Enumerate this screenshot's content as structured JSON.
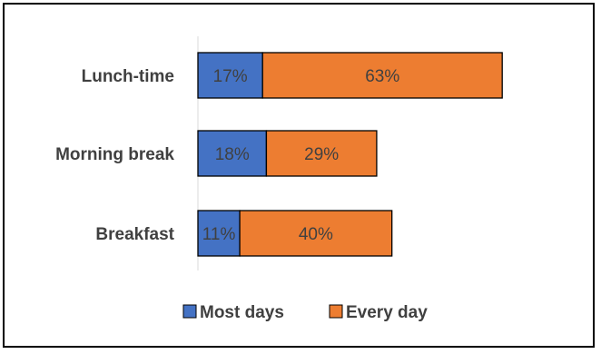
{
  "chart_data": {
    "type": "bar",
    "orientation": "horizontal",
    "stacked": true,
    "categories": [
      "Lunch-time",
      "Morning break",
      "Breakfast"
    ],
    "series": [
      {
        "name": "Most days",
        "values": [
          17,
          18,
          11
        ],
        "color": "#4472C4"
      },
      {
        "name": "Every day",
        "values": [
          63,
          29,
          40
        ],
        "color": "#ED7D31"
      }
    ],
    "value_suffix": "%",
    "title": "",
    "xlabel": "",
    "ylabel": "",
    "xlim": [
      0,
      100
    ],
    "grid": false,
    "legend_position": "bottom"
  }
}
